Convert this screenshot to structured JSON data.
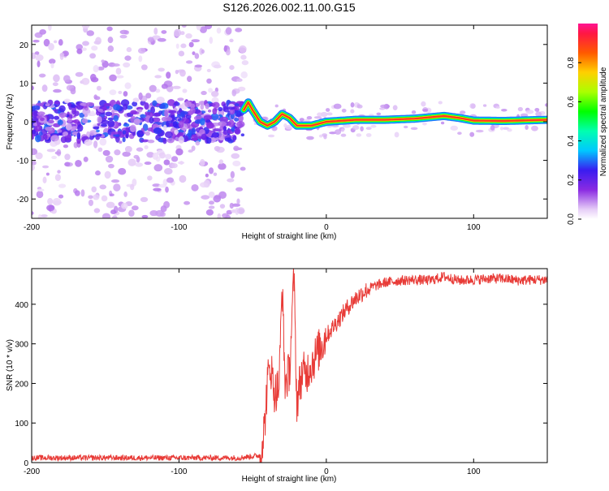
{
  "title": "S126.2026.002.11.00.G15",
  "colors": {
    "signal": "#ff5a2a",
    "snr_line": "#e83b37",
    "frame": "#000000"
  },
  "colorbar": {
    "label": "Normalized spectral amplitude",
    "ticks": [
      "0.0",
      "0.2",
      "0.4",
      "0.6",
      "0.8"
    ],
    "tick_values": [
      0.0,
      0.2,
      0.4,
      0.6,
      0.8
    ],
    "range": [
      0,
      1
    ]
  },
  "chart_data": [
    {
      "type": "heatmap",
      "title": "",
      "xlabel": "Height of straight line (km)",
      "ylabel": "Frequency (Hz)",
      "xlim": [
        -200,
        150
      ],
      "ylim": [
        -25,
        25
      ],
      "x_ticks": [
        -200,
        -100,
        0,
        100
      ],
      "x_tick_labels": [
        "-200",
        "-100",
        "0",
        "100"
      ],
      "y_ticks": [
        -20,
        -10,
        0,
        10,
        20
      ],
      "y_tick_labels": [
        "-20",
        "-10",
        "0",
        "10",
        "20"
      ],
      "ridge": {
        "x": [
          -200,
          -150,
          -100,
          -60,
          -53,
          -50,
          -45,
          -40,
          -35,
          -30,
          -25,
          -20,
          -10,
          0,
          20,
          40,
          60,
          80,
          90,
          100,
          120,
          150
        ],
        "y": [
          0.5,
          0.5,
          0.5,
          0.5,
          5.0,
          3.0,
          0.0,
          -1.0,
          0.0,
          2.0,
          1.0,
          -1.0,
          -1.0,
          0.0,
          0.5,
          0.5,
          0.8,
          1.5,
          1.0,
          0.3,
          0.2,
          0.5
        ]
      }
    },
    {
      "type": "line",
      "title": "",
      "xlabel": "Height of straight line (km)",
      "ylabel": "SNR (10 * v/v)",
      "xlim": [
        -200,
        150
      ],
      "ylim": [
        0,
        490
      ],
      "x_ticks": [
        -200,
        -100,
        0,
        100
      ],
      "x_tick_labels": [
        "-200",
        "-100",
        "0",
        "100"
      ],
      "y_ticks": [
        0,
        100,
        200,
        300,
        400
      ],
      "y_tick_labels": [
        "0",
        "100",
        "200",
        "300",
        "400"
      ],
      "series": [
        {
          "name": "SNR",
          "x": [
            -200,
            -150,
            -100,
            -60,
            -45,
            -42,
            -40,
            -38,
            -35,
            -32,
            -30,
            -28,
            -25,
            -22,
            -20,
            -18,
            -16,
            -14,
            -12,
            -10,
            -5,
            0,
            5,
            10,
            15,
            20,
            25,
            30,
            40,
            50,
            60,
            70,
            80,
            90,
            100,
            110,
            120,
            130,
            140,
            150
          ],
          "y": [
            12,
            12,
            12,
            12,
            18,
            90,
            200,
            250,
            175,
            195,
            455,
            200,
            230,
            470,
            150,
            200,
            230,
            220,
            240,
            250,
            285,
            320,
            345,
            370,
            395,
            415,
            430,
            442,
            455,
            460,
            462,
            460,
            470,
            460,
            462,
            465,
            465,
            460,
            462,
            462
          ]
        }
      ]
    }
  ]
}
